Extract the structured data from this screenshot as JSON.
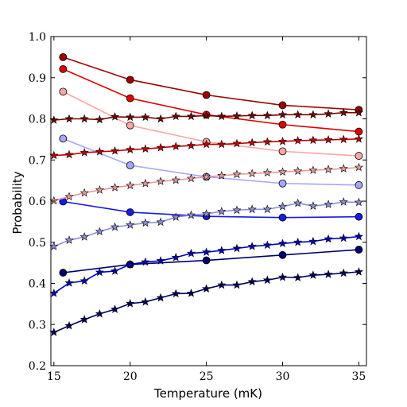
{
  "chart_data": {
    "type": "line",
    "title": "",
    "xlabel": "Temperature (mK)",
    "ylabel": "Probability",
    "xlim": [
      14.8,
      35.5
    ],
    "ylim": [
      0.2,
      1.0
    ],
    "xticks": [
      15,
      20,
      25,
      30,
      35
    ],
    "xtick_labels": [
      "15",
      "20",
      "25",
      "30",
      "35"
    ],
    "yticks": [
      0.2,
      0.3,
      0.4,
      0.5,
      0.6,
      0.7,
      0.8,
      0.9,
      1.0
    ],
    "ytick_labels": [
      "0.2",
      "0.3",
      "0.4",
      "0.5",
      "0.6",
      "0.7",
      "0.8",
      "0.9",
      "1.0"
    ],
    "grid": false,
    "legend": "none",
    "series": [
      {
        "marker": "circle",
        "color": "#9e0000",
        "x": [
          15.6,
          20,
          25,
          30,
          35
        ],
        "y": [
          0.95,
          0.895,
          0.858,
          0.833,
          0.822
        ]
      },
      {
        "marker": "circle",
        "color": "#e20000",
        "x": [
          15.6,
          20,
          25,
          30,
          35
        ],
        "y": [
          0.921,
          0.85,
          0.81,
          0.786,
          0.769
        ]
      },
      {
        "marker": "circle",
        "color": "#ffa6a6",
        "x": [
          15.6,
          20,
          25,
          30,
          35
        ],
        "y": [
          0.866,
          0.784,
          0.744,
          0.721,
          0.71
        ]
      },
      {
        "marker": "circle",
        "color": "#a6a6ff",
        "x": [
          15.6,
          20,
          25,
          30,
          35
        ],
        "y": [
          0.752,
          0.687,
          0.659,
          0.643,
          0.639
        ]
      },
      {
        "marker": "circle",
        "color": "#1a1ae6",
        "x": [
          15.6,
          20,
          25,
          30,
          35
        ],
        "y": [
          0.599,
          0.573,
          0.563,
          0.56,
          0.562
        ]
      },
      {
        "marker": "circle",
        "color": "#00006e",
        "x": [
          15.6,
          20,
          25,
          30,
          35
        ],
        "y": [
          0.426,
          0.446,
          0.456,
          0.469,
          0.482
        ]
      },
      {
        "marker": "star",
        "color": "#7a0000",
        "x": [
          15,
          16,
          17,
          18,
          19,
          20,
          21,
          22,
          23,
          24,
          25,
          26,
          27,
          28,
          29,
          30,
          31,
          32,
          33,
          34,
          35
        ],
        "y": [
          0.797,
          0.8,
          0.8,
          0.798,
          0.805,
          0.804,
          0.804,
          0.8,
          0.806,
          0.806,
          0.808,
          0.806,
          0.807,
          0.808,
          0.808,
          0.81,
          0.81,
          0.81,
          0.812,
          0.815,
          0.815
        ]
      },
      {
        "marker": "star",
        "color": "#c40000",
        "x": [
          15,
          16,
          17,
          18,
          19,
          20,
          21,
          22,
          23,
          24,
          25,
          26,
          27,
          28,
          29,
          30,
          31,
          32,
          33,
          34,
          35
        ],
        "y": [
          0.711,
          0.713,
          0.718,
          0.72,
          0.722,
          0.725,
          0.727,
          0.73,
          0.733,
          0.735,
          0.738,
          0.738,
          0.74,
          0.742,
          0.744,
          0.745,
          0.747,
          0.748,
          0.749,
          0.75,
          0.751
        ]
      },
      {
        "marker": "star",
        "color": "#e69a9a",
        "x": [
          15,
          16,
          17,
          18,
          19,
          20,
          21,
          22,
          23,
          24,
          25,
          26,
          27,
          28,
          29,
          30,
          31,
          32,
          33,
          34,
          35
        ],
        "y": [
          0.601,
          0.611,
          0.62,
          0.627,
          0.633,
          0.638,
          0.643,
          0.648,
          0.651,
          0.655,
          0.659,
          0.662,
          0.665,
          0.667,
          0.669,
          0.671,
          0.673,
          0.675,
          0.677,
          0.679,
          0.682
        ]
      },
      {
        "marker": "star",
        "color": "#8c8cd8",
        "x": [
          15,
          16,
          17,
          18,
          19,
          20,
          21,
          22,
          23,
          24,
          25,
          26,
          27,
          28,
          29,
          30,
          31,
          32,
          33,
          34,
          35
        ],
        "y": [
          0.49,
          0.505,
          0.513,
          0.526,
          0.537,
          0.542,
          0.547,
          0.549,
          0.561,
          0.566,
          0.569,
          0.575,
          0.578,
          0.58,
          0.58,
          0.587,
          0.595,
          0.588,
          0.592,
          0.598,
          0.597
        ]
      },
      {
        "marker": "star",
        "color": "#0000c4",
        "x": [
          15,
          16,
          17,
          18,
          19,
          20,
          21,
          22,
          23,
          24,
          25,
          26,
          27,
          28,
          29,
          30,
          31,
          32,
          33,
          34,
          35
        ],
        "y": [
          0.376,
          0.401,
          0.406,
          0.427,
          0.43,
          0.446,
          0.452,
          0.455,
          0.463,
          0.473,
          0.476,
          0.48,
          0.485,
          0.49,
          0.493,
          0.497,
          0.5,
          0.502,
          0.508,
          0.51,
          0.514
        ]
      },
      {
        "marker": "star",
        "color": "#000060",
        "x": [
          15,
          16,
          17,
          18,
          19,
          20,
          21,
          22,
          23,
          24,
          25,
          26,
          27,
          28,
          29,
          30,
          31,
          32,
          33,
          34,
          35
        ],
        "y": [
          0.281,
          0.297,
          0.312,
          0.326,
          0.337,
          0.351,
          0.355,
          0.365,
          0.375,
          0.376,
          0.387,
          0.396,
          0.396,
          0.404,
          0.408,
          0.415,
          0.414,
          0.42,
          0.422,
          0.425,
          0.428
        ]
      }
    ]
  }
}
